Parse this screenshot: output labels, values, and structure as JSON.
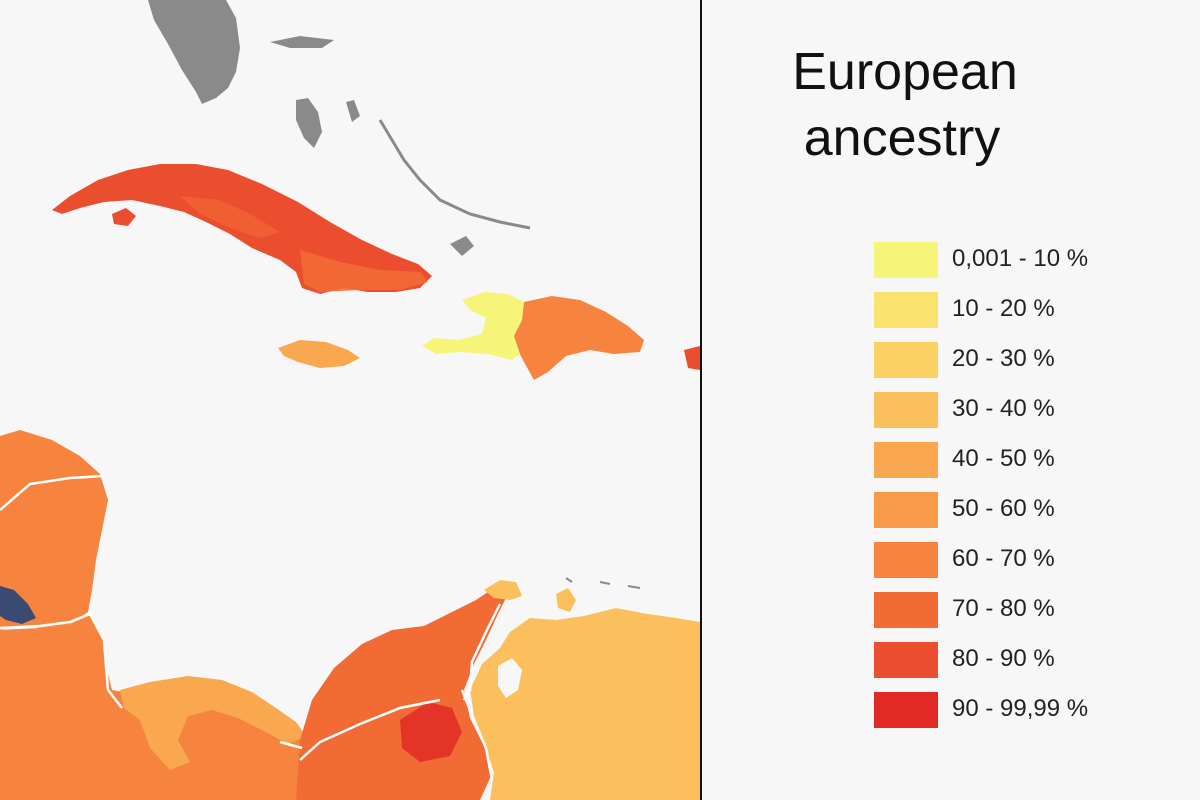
{
  "legend": {
    "title_line1": "European",
    "title_line2": "ancestry",
    "items": [
      {
        "label": "0,001 - 10 %",
        "color": "#f7f47a"
      },
      {
        "label": "10 - 20 %",
        "color": "#fae26e"
      },
      {
        "label": "20 - 30 %",
        "color": "#fbd165"
      },
      {
        "label": "30 - 40 %",
        "color": "#fbbf5e"
      },
      {
        "label": "40 - 50 %",
        "color": "#f9a850"
      },
      {
        "label": "50 - 60 %",
        "color": "#f89a48"
      },
      {
        "label": "60 - 70 %",
        "color": "#f6843e"
      },
      {
        "label": "70 - 80 %",
        "color": "#f26b35"
      },
      {
        "label": "80 - 90 %",
        "color": "#ea4e2e"
      },
      {
        "label": "90 - 99,99 %",
        "color": "#e12a25"
      }
    ]
  },
  "map": {
    "colors": {
      "background": "#f7f7f7",
      "no_data": "#8a8a8a",
      "border": "#ffffff",
      "other_category": "#3b4a73"
    },
    "regions": [
      {
        "name": "florida",
        "class": "no-data"
      },
      {
        "name": "bahamas",
        "class": "no-data"
      },
      {
        "name": "cuba",
        "class": "80 - 90 %"
      },
      {
        "name": "jamaica",
        "class": "40 - 50 %"
      },
      {
        "name": "haiti",
        "class": "0,001 - 10 %"
      },
      {
        "name": "dominican-republic",
        "class": "60 - 70 %"
      },
      {
        "name": "puerto-rico",
        "class": "80 - 90 %"
      },
      {
        "name": "yucatan-mexico",
        "class": "60 - 70 %"
      },
      {
        "name": "belize",
        "class": "other"
      },
      {
        "name": "central-america",
        "class": "60 - 70 %"
      },
      {
        "name": "colombia",
        "class": "70 - 80 %"
      },
      {
        "name": "venezuela",
        "class": "30 - 40 %"
      }
    ]
  }
}
